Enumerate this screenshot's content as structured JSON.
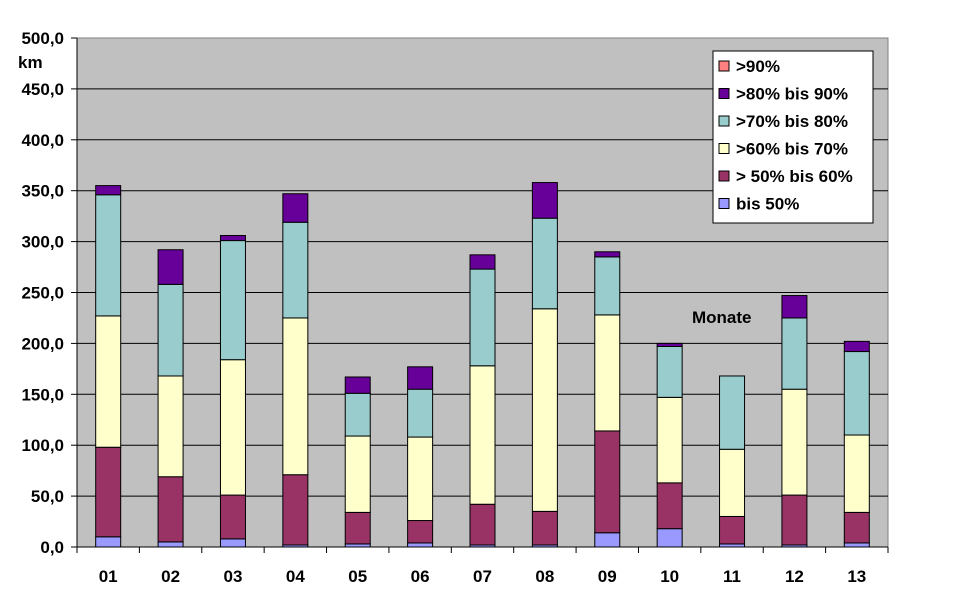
{
  "chart_data": {
    "type": "bar",
    "stacked": true,
    "categories": [
      "01",
      "02",
      "03",
      "04",
      "05",
      "06",
      "07",
      "08",
      "09",
      "10",
      "11",
      "12",
      "13"
    ],
    "series": [
      {
        "name": "bis  50%",
        "color": "#9999ff",
        "values": [
          10,
          5,
          8,
          2,
          3,
          4,
          2,
          2,
          14,
          18,
          3,
          2,
          4
        ]
      },
      {
        "name": "> 50% bis 60%",
        "color": "#993366",
        "values": [
          88,
          64,
          43,
          69,
          31,
          22,
          40,
          33,
          100,
          45,
          27,
          49,
          30
        ]
      },
      {
        "name": ">60% bis 70%",
        "color": "#ffffcc",
        "values": [
          129,
          99,
          133,
          154,
          75,
          82,
          136,
          199,
          114,
          84,
          66,
          104,
          76
        ]
      },
      {
        "name": ">70% bis 80%",
        "color": "#99cccc",
        "values": [
          119,
          90,
          117,
          94,
          42,
          47,
          95,
          89,
          57,
          50,
          72,
          70,
          82
        ]
      },
      {
        "name": ">80% bis 90%",
        "color": "#660099",
        "values": [
          9,
          34,
          5,
          28,
          16,
          22,
          14,
          35,
          5,
          3,
          0,
          22,
          10
        ]
      },
      {
        "name": ">90%",
        "color": "#ff8080",
        "values": [
          0,
          0,
          0,
          0,
          0,
          0,
          0,
          0,
          0,
          0,
          0,
          0,
          0
        ]
      }
    ],
    "y_tick_labels": [
      "0,0",
      "50,0",
      "100,0",
      "150,0",
      "200,0",
      "250,0",
      "300,0",
      "350,0",
      "400,0",
      "450,0",
      "500,0"
    ],
    "ylim": [
      0,
      500
    ],
    "ylabel": "km",
    "annotation": "Monate",
    "grid": true,
    "legend_position": "top-right",
    "plot_background": "#c0c0c0"
  }
}
